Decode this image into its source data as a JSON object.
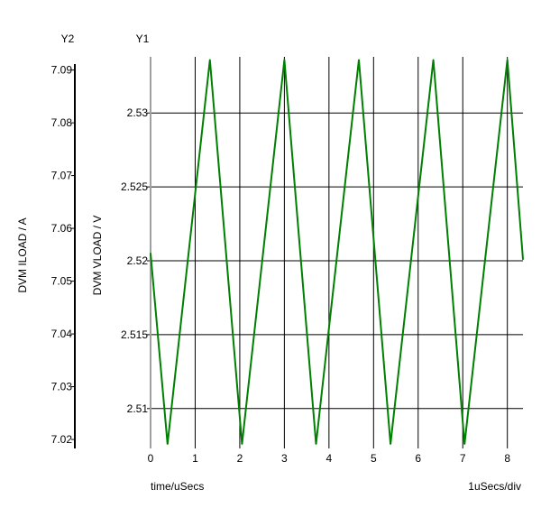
{
  "chart_data": {
    "type": "line",
    "axes": {
      "y2": {
        "tag": "Y2",
        "label": "DVM ILOAD / A",
        "ticks": [
          7.02,
          7.03,
          7.04,
          7.05,
          7.06,
          7.07,
          7.08,
          7.09
        ],
        "tick_labels": [
          "7.02",
          "7.03",
          "7.04",
          "7.05",
          "7.06",
          "7.07",
          "7.08",
          "7.09"
        ],
        "range": [
          7.0183,
          7.0925
        ]
      },
      "y1": {
        "tag": "Y1",
        "label": "DVM VLOAD / V",
        "ticks": [
          2.51,
          2.515,
          2.52,
          2.525,
          2.53
        ],
        "tick_labels": [
          "2.51",
          "2.515",
          "2.52",
          "2.525",
          "2.53"
        ],
        "range": [
          2.5073,
          2.5338
        ]
      },
      "x": {
        "label": "time/uSecs",
        "scale_note": "1uSecs/div",
        "ticks": [
          0,
          1,
          2,
          3,
          4,
          5,
          6,
          7,
          8
        ],
        "tick_labels": [
          "0",
          "1",
          "2",
          "3",
          "4",
          "5",
          "6",
          "7",
          "8"
        ],
        "range": [
          0,
          8.35
        ]
      }
    },
    "grid": true,
    "series": [
      {
        "axis": "y1",
        "color": "#008000",
        "x": [
          0,
          0.38,
          1.33,
          2.05,
          3.0,
          3.71,
          4.67,
          5.38,
          6.34,
          7.04,
          8.0,
          8.35
        ],
        "y": [
          2.5205,
          2.5076,
          2.5336,
          2.5076,
          2.5336,
          2.5076,
          2.5336,
          2.5076,
          2.5336,
          2.5076,
          2.5336,
          2.5201
        ]
      }
    ]
  }
}
